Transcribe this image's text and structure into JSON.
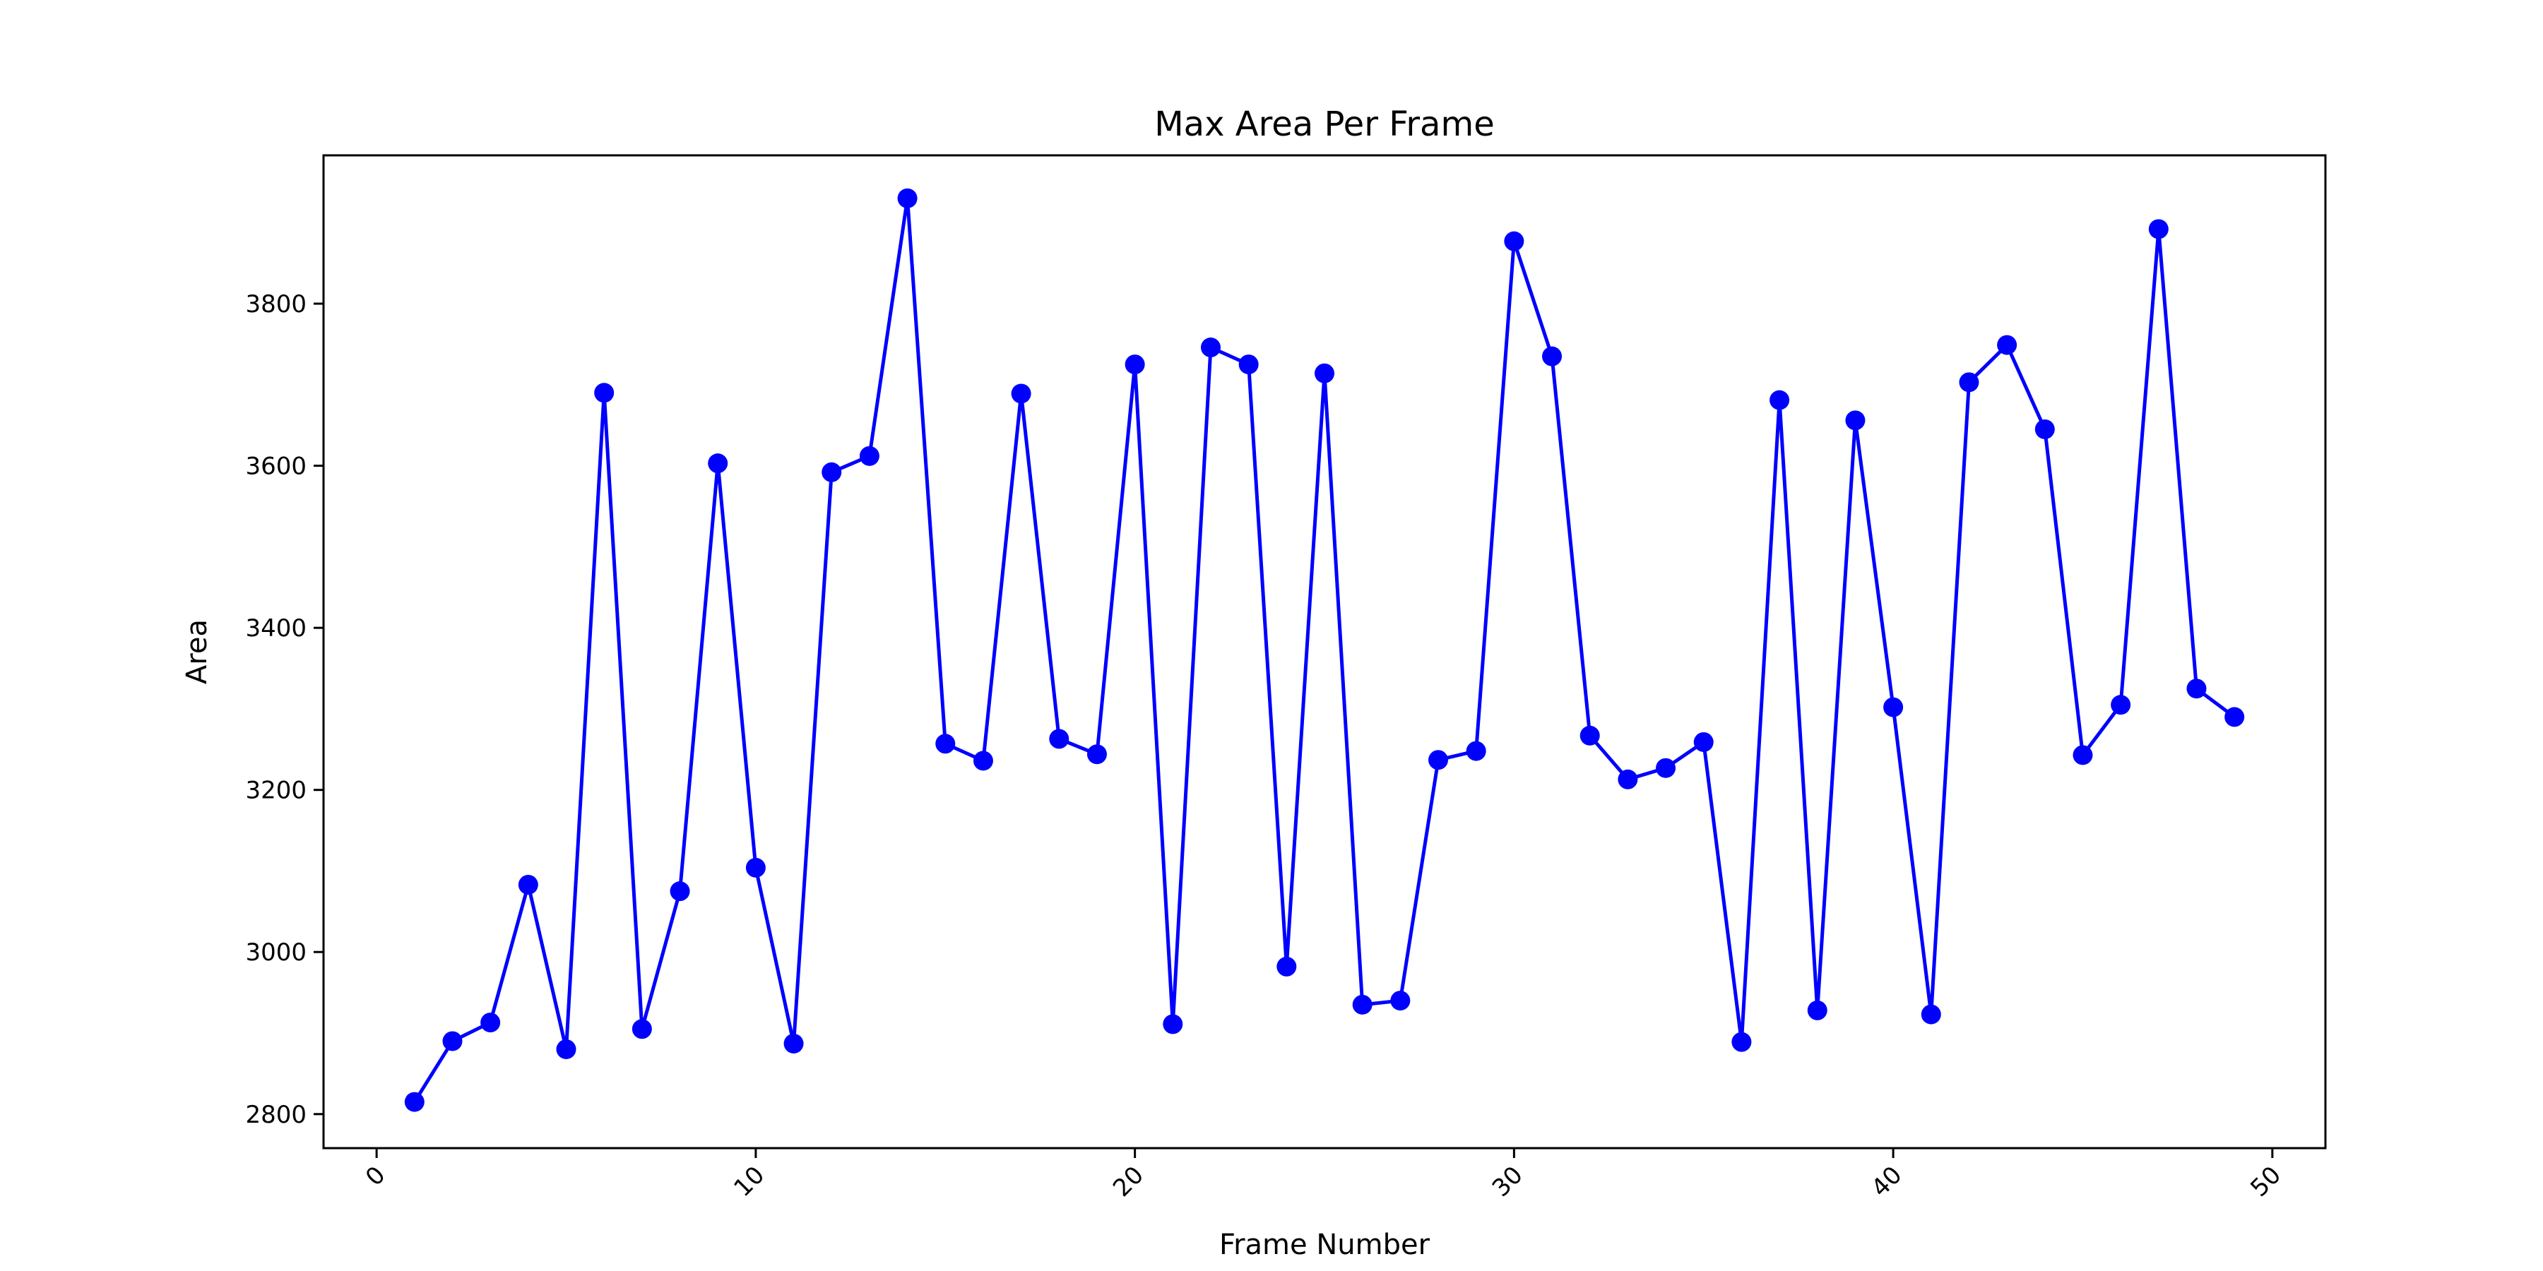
{
  "chart_data": {
    "type": "line",
    "title": "Max Area Per Frame",
    "xlabel": "Frame Number",
    "ylabel": "Area",
    "xlim": [
      -1.4,
      51.4
    ],
    "ylim": [
      2758,
      3983
    ],
    "xticks": [
      0,
      10,
      20,
      30,
      40,
      50
    ],
    "yticks": [
      2800,
      3000,
      3200,
      3400,
      3600,
      3800
    ],
    "grid": false,
    "series": [
      {
        "color": "#0000ff",
        "marker": "circle",
        "x": [
          1,
          2,
          3,
          4,
          5,
          6,
          7,
          8,
          9,
          10,
          11,
          12,
          13,
          14,
          15,
          16,
          17,
          18,
          19,
          20,
          21,
          22,
          23,
          24,
          25,
          26,
          27,
          28,
          29,
          30,
          31,
          32,
          33,
          34,
          35,
          36,
          37,
          38,
          39,
          40,
          41,
          42,
          43,
          44,
          45,
          46,
          47,
          48,
          49
        ],
        "y": [
          2815,
          2890,
          2913,
          3083,
          2880,
          3690,
          2905,
          3075,
          3603,
          3104,
          2887,
          3592,
          3612,
          3930,
          3257,
          3236,
          3689,
          3263,
          3244,
          3725,
          2911,
          3746,
          3725,
          2982,
          3714,
          2935,
          2940,
          3237,
          3248,
          3877,
          3735,
          3267,
          3213,
          3227,
          3259,
          2889,
          3681,
          2928,
          3656,
          3302,
          2923,
          3703,
          3749,
          3645,
          3243,
          3305,
          3892,
          3325,
          3290
        ]
      }
    ]
  }
}
